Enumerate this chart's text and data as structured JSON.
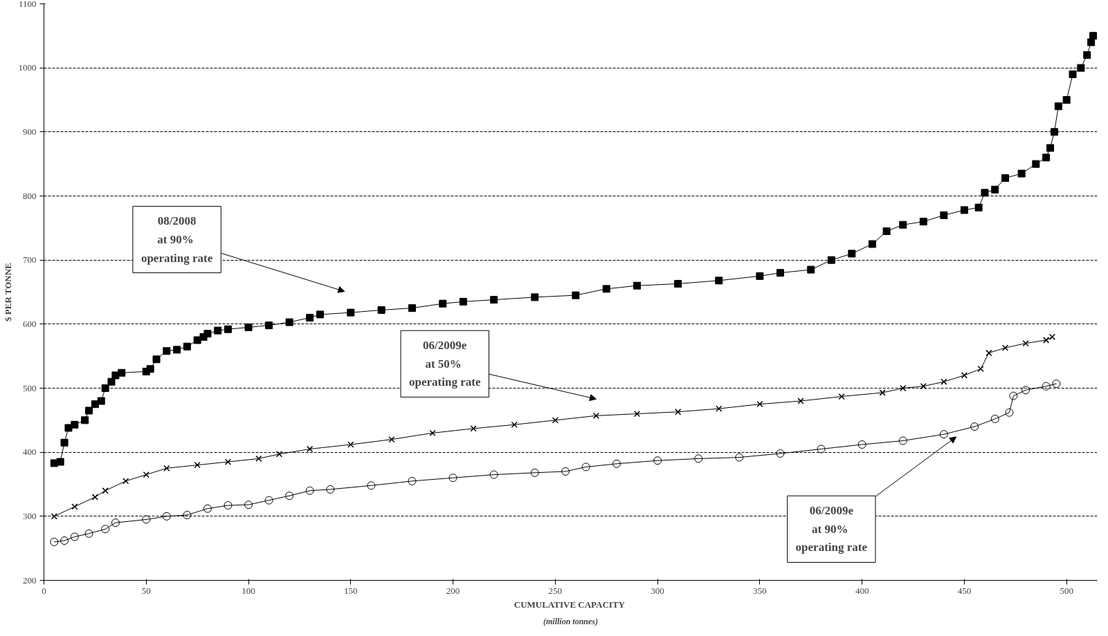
{
  "chart_data": {
    "type": "line",
    "xlabel": "CUMULATIVE  CAPACITY",
    "ylabel": "$ PER TONNE",
    "annotations": [
      "08/2008\nat  90%\noperating rate",
      "06/2009e\nat  50%\noperating rate",
      "06/2009e\nat  90%\noperating rate",
      "(million tonnes)"
    ],
    "xlim": [
      0,
      515
    ],
    "ylim": [
      200,
      1100
    ],
    "xticks": [
      0,
      50,
      100,
      150,
      200,
      250,
      300,
      350,
      400,
      450,
      500
    ],
    "yticks": [
      200,
      300,
      400,
      500,
      600,
      700,
      800,
      900,
      1000,
      1100
    ],
    "grid": "y",
    "line_style": "solid",
    "series": [
      {
        "color": "#000000",
        "marker": "square",
        "x": [
          5,
          8,
          10,
          12,
          15,
          20,
          22,
          25,
          28,
          30,
          33,
          35,
          38,
          50,
          52,
          55,
          60,
          65,
          70,
          75,
          78,
          80,
          85,
          90,
          100,
          110,
          120,
          130,
          135,
          150,
          165,
          180,
          195,
          205,
          220,
          240,
          260,
          275,
          290,
          310,
          330,
          350,
          360,
          375,
          385,
          395,
          405,
          412,
          420,
          430,
          440,
          450,
          457,
          460,
          465,
          470,
          478,
          485,
          490,
          492,
          494,
          496,
          500,
          503,
          507,
          510,
          512,
          513
        ],
        "values": [
          383,
          385,
          415,
          438,
          443,
          450,
          465,
          475,
          480,
          500,
          510,
          520,
          524,
          526,
          530,
          545,
          558,
          560,
          565,
          575,
          580,
          585,
          590,
          592,
          595,
          598,
          603,
          610,
          615,
          618,
          622,
          625,
          632,
          635,
          638,
          642,
          645,
          655,
          660,
          663,
          668,
          675,
          680,
          685,
          700,
          710,
          725,
          745,
          755,
          760,
          770,
          778,
          782,
          805,
          810,
          828,
          835,
          850,
          860,
          875,
          900,
          940,
          950,
          990,
          1000,
          1020,
          1040,
          1050
        ]
      },
      {
        "color": "#000000",
        "marker": "cross",
        "x": [
          5,
          15,
          25,
          30,
          40,
          50,
          60,
          75,
          90,
          105,
          115,
          130,
          150,
          170,
          190,
          210,
          230,
          250,
          270,
          290,
          310,
          330,
          350,
          370,
          390,
          410,
          420,
          430,
          440,
          450,
          458,
          462,
          470,
          480,
          490,
          493
        ],
        "values": [
          300,
          315,
          330,
          340,
          355,
          365,
          375,
          380,
          385,
          390,
          397,
          405,
          412,
          420,
          430,
          437,
          443,
          450,
          457,
          460,
          463,
          468,
          475,
          480,
          487,
          493,
          500,
          503,
          510,
          520,
          530,
          555,
          563,
          570,
          575,
          580
        ]
      },
      {
        "color": "#000000",
        "marker": "circle",
        "x": [
          5,
          10,
          15,
          22,
          30,
          35,
          50,
          60,
          70,
          80,
          90,
          100,
          110,
          120,
          130,
          140,
          160,
          180,
          200,
          220,
          240,
          255,
          265,
          280,
          300,
          320,
          340,
          360,
          380,
          400,
          420,
          440,
          455,
          465,
          472,
          474,
          480,
          490,
          495
        ],
        "values": [
          260,
          262,
          268,
          273,
          280,
          290,
          295,
          300,
          302,
          312,
          317,
          318,
          325,
          332,
          340,
          342,
          348,
          355,
          360,
          365,
          368,
          370,
          377,
          382,
          387,
          390,
          392,
          398,
          405,
          412,
          418,
          428,
          440,
          452,
          462,
          488,
          497,
          503,
          507
        ]
      }
    ]
  }
}
